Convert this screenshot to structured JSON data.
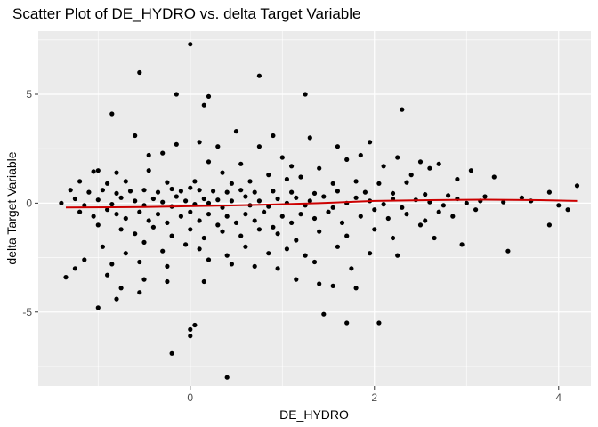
{
  "chart_data": {
    "type": "scatter",
    "title": "Scatter Plot of DE_HYDRO vs. delta Target Variable",
    "xlabel": "DE_HYDRO",
    "ylabel": "delta Target Variable",
    "xlim": [
      -1.65,
      4.35
    ],
    "ylim": [
      -8.4,
      7.9
    ],
    "x_ticks": [
      0,
      2,
      4
    ],
    "y_ticks": [
      5,
      0,
      -5
    ],
    "x_tick_labels": [
      "0",
      "2",
      "4"
    ],
    "y_tick_labels": [
      "5",
      "0",
      "-5"
    ],
    "grid": true,
    "legend": "none",
    "colors": {
      "panel": "#ebebeb",
      "grid": "#ffffff",
      "points": "#000000",
      "trend_line": "#cc0000"
    },
    "trend_line": {
      "x": [
        -1.35,
        -0.5,
        0.3,
        0.8,
        1.4,
        2.0,
        2.6,
        3.2,
        3.8,
        4.2
      ],
      "y": [
        -0.2,
        -0.18,
        -0.12,
        -0.07,
        0.0,
        0.1,
        0.14,
        0.16,
        0.14,
        0.1
      ]
    },
    "points": [
      [
        0.0,
        7.3
      ],
      [
        -0.55,
        6.0
      ],
      [
        0.75,
        5.85
      ],
      [
        -0.15,
        5.0
      ],
      [
        1.25,
        5.0
      ],
      [
        0.2,
        4.9
      ],
      [
        2.3,
        4.3
      ],
      [
        -0.85,
        4.1
      ],
      [
        0.15,
        4.5
      ],
      [
        -0.6,
        3.1
      ],
      [
        0.5,
        3.3
      ],
      [
        0.9,
        3.1
      ],
      [
        1.3,
        3.0
      ],
      [
        0.1,
        2.8
      ],
      [
        -0.15,
        2.7
      ],
      [
        0.3,
        2.6
      ],
      [
        0.75,
        2.6
      ],
      [
        1.6,
        2.6
      ],
      [
        1.95,
        2.8
      ],
      [
        -0.3,
        2.3
      ],
      [
        -0.45,
        2.2
      ],
      [
        1.0,
        2.1
      ],
      [
        1.7,
        2.0
      ],
      [
        1.85,
        2.2
      ],
      [
        2.25,
        2.1
      ],
      [
        2.5,
        1.9
      ],
      [
        2.6,
        1.6
      ],
      [
        2.7,
        1.8
      ],
      [
        3.05,
        1.5
      ],
      [
        0.2,
        1.9
      ],
      [
        0.55,
        1.8
      ],
      [
        1.1,
        1.7
      ],
      [
        1.4,
        1.6
      ],
      [
        2.1,
        1.7
      ],
      [
        -1.0,
        1.5
      ],
      [
        -1.05,
        1.45
      ],
      [
        -0.8,
        1.4
      ],
      [
        -0.45,
        1.5
      ],
      [
        0.35,
        1.4
      ],
      [
        0.85,
        1.3
      ],
      [
        1.2,
        1.2
      ],
      [
        2.4,
        1.3
      ],
      [
        2.9,
        1.1
      ],
      [
        3.3,
        1.2
      ],
      [
        -1.2,
        1.0
      ],
      [
        -0.9,
        0.9
      ],
      [
        -0.7,
        1.0
      ],
      [
        -0.25,
        0.95
      ],
      [
        0.05,
        1.0
      ],
      [
        0.45,
        0.9
      ],
      [
        0.65,
        1.0
      ],
      [
        1.05,
        1.1
      ],
      [
        1.55,
        0.9
      ],
      [
        1.8,
        1.0
      ],
      [
        2.05,
        0.9
      ],
      [
        2.35,
        0.95
      ],
      [
        -1.3,
        0.6
      ],
      [
        -1.1,
        0.5
      ],
      [
        -0.95,
        0.6
      ],
      [
        -0.8,
        0.45
      ],
      [
        -0.65,
        0.55
      ],
      [
        -0.5,
        0.6
      ],
      [
        -0.35,
        0.5
      ],
      [
        -0.2,
        0.65
      ],
      [
        -0.1,
        0.55
      ],
      [
        0.0,
        0.7
      ],
      [
        0.1,
        0.6
      ],
      [
        0.25,
        0.55
      ],
      [
        0.4,
        0.5
      ],
      [
        0.55,
        0.6
      ],
      [
        0.7,
        0.5
      ],
      [
        0.9,
        0.55
      ],
      [
        1.1,
        0.5
      ],
      [
        1.35,
        0.45
      ],
      [
        1.6,
        0.55
      ],
      [
        1.9,
        0.5
      ],
      [
        2.2,
        0.45
      ],
      [
        2.55,
        0.4
      ],
      [
        2.8,
        0.35
      ],
      [
        3.2,
        0.3
      ],
      [
        3.6,
        0.25
      ],
      [
        3.9,
        0.5
      ],
      [
        4.2,
        0.8
      ],
      [
        -1.4,
        0.0
      ],
      [
        -1.25,
        0.2
      ],
      [
        -1.15,
        -0.1
      ],
      [
        -1.0,
        0.15
      ],
      [
        -0.85,
        -0.05
      ],
      [
        -0.75,
        0.25
      ],
      [
        -0.6,
        0.1
      ],
      [
        -0.5,
        -0.1
      ],
      [
        -0.4,
        0.2
      ],
      [
        -0.3,
        0.05
      ],
      [
        -0.2,
        -0.15
      ],
      [
        -0.15,
        0.3
      ],
      [
        -0.05,
        0.1
      ],
      [
        0.05,
        -0.05
      ],
      [
        0.15,
        0.2
      ],
      [
        0.2,
        0.0
      ],
      [
        0.3,
        0.15
      ],
      [
        0.35,
        -0.2
      ],
      [
        0.45,
        0.1
      ],
      [
        0.6,
        0.3
      ],
      [
        0.65,
        -0.1
      ],
      [
        0.75,
        0.1
      ],
      [
        0.85,
        -0.15
      ],
      [
        0.95,
        0.2
      ],
      [
        1.05,
        0.0
      ],
      [
        1.15,
        0.25
      ],
      [
        1.25,
        -0.1
      ],
      [
        1.3,
        0.1
      ],
      [
        1.45,
        0.3
      ],
      [
        1.55,
        -0.2
      ],
      [
        1.7,
        0.0
      ],
      [
        1.8,
        0.25
      ],
      [
        1.95,
        0.1
      ],
      [
        2.1,
        -0.05
      ],
      [
        2.2,
        0.2
      ],
      [
        2.3,
        -0.2
      ],
      [
        2.45,
        0.15
      ],
      [
        2.6,
        0.05
      ],
      [
        2.75,
        -0.1
      ],
      [
        2.9,
        0.2
      ],
      [
        3.0,
        0.0
      ],
      [
        3.15,
        0.1
      ],
      [
        3.4,
        0.05
      ],
      [
        3.7,
        0.1
      ],
      [
        4.0,
        -0.1
      ],
      [
        -1.2,
        -0.4
      ],
      [
        -1.05,
        -0.6
      ],
      [
        -0.9,
        -0.3
      ],
      [
        -0.8,
        -0.5
      ],
      [
        -0.7,
        -0.7
      ],
      [
        -0.55,
        -0.4
      ],
      [
        -0.45,
        -0.8
      ],
      [
        -0.35,
        -0.5
      ],
      [
        -0.25,
        -0.9
      ],
      [
        -0.1,
        -0.6
      ],
      [
        0.0,
        -0.4
      ],
      [
        0.1,
        -0.8
      ],
      [
        0.2,
        -0.5
      ],
      [
        0.3,
        -1.0
      ],
      [
        0.4,
        -0.6
      ],
      [
        0.5,
        -0.9
      ],
      [
        0.6,
        -0.5
      ],
      [
        0.7,
        -0.8
      ],
      [
        0.8,
        -0.4
      ],
      [
        0.9,
        -1.1
      ],
      [
        1.0,
        -0.6
      ],
      [
        1.1,
        -0.9
      ],
      [
        1.2,
        -0.5
      ],
      [
        1.35,
        -0.7
      ],
      [
        1.5,
        -0.4
      ],
      [
        1.65,
        -0.9
      ],
      [
        1.85,
        -0.6
      ],
      [
        2.0,
        -0.3
      ],
      [
        2.15,
        -0.7
      ],
      [
        2.35,
        -0.5
      ],
      [
        2.55,
        -0.8
      ],
      [
        2.7,
        -0.4
      ],
      [
        2.85,
        -0.6
      ],
      [
        3.1,
        -0.3
      ],
      [
        -1.0,
        -1.0
      ],
      [
        -0.75,
        -1.2
      ],
      [
        -0.6,
        -1.4
      ],
      [
        -0.4,
        -1.1
      ],
      [
        -0.2,
        -1.5
      ],
      [
        0.0,
        -1.2
      ],
      [
        0.15,
        -1.6
      ],
      [
        0.35,
        -1.3
      ],
      [
        0.55,
        -1.5
      ],
      [
        0.75,
        -1.2
      ],
      [
        0.95,
        -1.4
      ],
      [
        1.15,
        -1.7
      ],
      [
        1.4,
        -1.3
      ],
      [
        1.7,
        -1.5
      ],
      [
        2.0,
        -1.2
      ],
      [
        2.2,
        -1.6
      ],
      [
        2.5,
        -1.0
      ],
      [
        -0.95,
        -2.0
      ],
      [
        -0.7,
        -2.3
      ],
      [
        -0.5,
        -1.8
      ],
      [
        -0.3,
        -2.2
      ],
      [
        -0.05,
        -1.9
      ],
      [
        0.1,
        -2.1
      ],
      [
        0.4,
        -2.4
      ],
      [
        0.6,
        -2.0
      ],
      [
        0.85,
        -2.3
      ],
      [
        1.05,
        -2.1
      ],
      [
        1.25,
        -2.4
      ],
      [
        1.6,
        -2.0
      ],
      [
        1.95,
        -2.3
      ],
      [
        2.25,
        -2.4
      ],
      [
        2.65,
        -1.6
      ],
      [
        2.95,
        -1.9
      ],
      [
        3.45,
        -2.2
      ],
      [
        3.9,
        -1.0
      ],
      [
        4.1,
        -0.3
      ],
      [
        -1.15,
        -2.6
      ],
      [
        -0.85,
        -2.8
      ],
      [
        -0.55,
        -2.7
      ],
      [
        -0.25,
        -2.9
      ],
      [
        0.2,
        -2.6
      ],
      [
        0.45,
        -2.8
      ],
      [
        0.7,
        -2.9
      ],
      [
        0.95,
        -3.0
      ],
      [
        1.35,
        -2.7
      ],
      [
        1.75,
        -3.0
      ],
      [
        -1.35,
        -3.4
      ],
      [
        -1.25,
        -3.0
      ],
      [
        -0.9,
        -3.3
      ],
      [
        -0.5,
        -3.5
      ],
      [
        -0.25,
        -3.6
      ],
      [
        0.15,
        -3.6
      ],
      [
        1.15,
        -3.5
      ],
      [
        1.4,
        -3.7
      ],
      [
        1.55,
        -3.8
      ],
      [
        1.8,
        -3.9
      ],
      [
        -0.75,
        -3.9
      ],
      [
        -0.55,
        -4.1
      ],
      [
        -1.0,
        -4.8
      ],
      [
        -0.8,
        -4.4
      ],
      [
        1.45,
        -5.1
      ],
      [
        1.7,
        -5.5
      ],
      [
        2.05,
        -5.5
      ],
      [
        0.0,
        -5.8
      ],
      [
        0.05,
        -5.6
      ],
      [
        0.0,
        -6.1
      ],
      [
        -0.2,
        -6.9
      ],
      [
        0.4,
        -8.0
      ]
    ]
  }
}
